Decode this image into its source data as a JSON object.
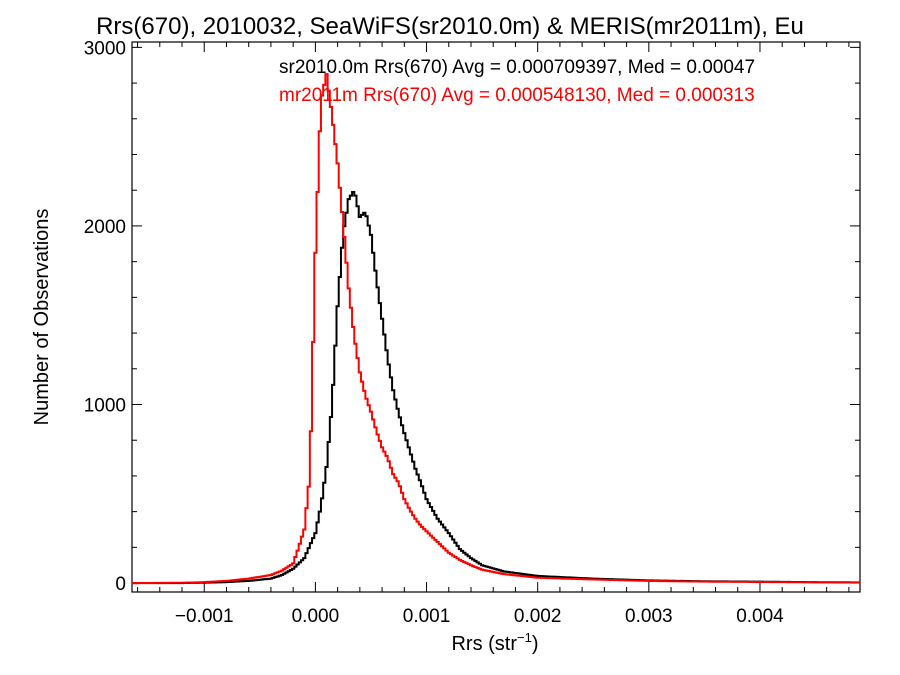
{
  "chart_data": {
    "type": "line",
    "title": "Rrs(670), 2010032, SeaWiFS(sr2010.0m) & MERIS(mr2011m), Eu",
    "xlabel": "Rrs (str",
    "xlabel_sup": "−1",
    "xlabel_close": ")",
    "ylabel": "Number of Observations",
    "xlim": [
      -0.00165,
      0.0049
    ],
    "ylim": [
      -50,
      3030
    ],
    "x_ticks": [
      {
        "value": -0.001,
        "label": "−0.001"
      },
      {
        "value": 0.0,
        "label": "0.000"
      },
      {
        "value": 0.001,
        "label": "0.001"
      },
      {
        "value": 0.002,
        "label": "0.002"
      },
      {
        "value": 0.003,
        "label": "0.003"
      },
      {
        "value": 0.004,
        "label": "0.004"
      }
    ],
    "y_ticks": [
      {
        "value": 0,
        "label": "0"
      },
      {
        "value": 1000,
        "label": "1000"
      },
      {
        "value": 2000,
        "label": "2000"
      },
      {
        "value": 3000,
        "label": "3000"
      }
    ],
    "annotations": [
      "sr2010.0m Rrs(670) Avg = 0.000709397, Med = 0.00047",
      "mr2011m Rrs(670) Avg = 0.000548130, Med = 0.000313"
    ],
    "grid": false,
    "series": [
      {
        "name": "sr2010.0m",
        "color": "#000000",
        "x": [
          -0.0016,
          -0.0012,
          -0.001,
          -0.0008,
          -0.0006,
          -0.0004,
          -0.0003,
          -0.0002,
          -0.0001,
          0.0,
          5e-05,
          0.0001,
          0.00015,
          0.0002,
          0.00025,
          0.0003,
          0.00035,
          0.0004,
          0.00045,
          0.0005,
          0.00055,
          0.0006,
          0.00065,
          0.0007,
          0.00075,
          0.0008,
          0.00085,
          0.0009,
          0.00095,
          0.001,
          0.0011,
          0.0012,
          0.0013,
          0.0014,
          0.0015,
          0.0017,
          0.002,
          0.0025,
          0.003,
          0.0035,
          0.004,
          0.0045,
          0.0049
        ],
        "values": [
          0,
          0,
          2,
          5,
          12,
          25,
          45,
          80,
          140,
          280,
          430,
          650,
          1000,
          1550,
          1960,
          2150,
          2200,
          2050,
          2080,
          1950,
          1700,
          1480,
          1260,
          1080,
          950,
          840,
          740,
          640,
          560,
          470,
          360,
          280,
          190,
          140,
          100,
          65,
          40,
          25,
          15,
          10,
          8,
          5,
          4
        ]
      },
      {
        "name": "mr2011m",
        "color": "#ff0000",
        "x": [
          -0.0016,
          -0.0012,
          -0.001,
          -0.0008,
          -0.0006,
          -0.0004,
          -0.0003,
          -0.0002,
          -0.00015,
          -0.0001,
          -5e-05,
          0.0,
          5e-05,
          0.0001,
          0.00015,
          0.0002,
          0.00025,
          0.0003,
          0.00035,
          0.0004,
          0.00045,
          0.0005,
          0.00055,
          0.0006,
          0.00065,
          0.0007,
          0.00075,
          0.0008,
          0.00085,
          0.0009,
          0.00095,
          0.001,
          0.0011,
          0.0012,
          0.0013,
          0.0014,
          0.0015,
          0.0017,
          0.002,
          0.0025,
          0.003,
          0.0035,
          0.004,
          0.0045,
          0.0049
        ],
        "values": [
          0,
          2,
          5,
          12,
          25,
          45,
          70,
          110,
          200,
          300,
          600,
          1850,
          2700,
          2850,
          2620,
          2350,
          2010,
          1650,
          1380,
          1180,
          1050,
          960,
          850,
          760,
          700,
          610,
          560,
          470,
          410,
          360,
          320,
          290,
          230,
          170,
          130,
          100,
          75,
          50,
          30,
          20,
          12,
          8,
          6,
          4,
          3
        ]
      }
    ]
  }
}
